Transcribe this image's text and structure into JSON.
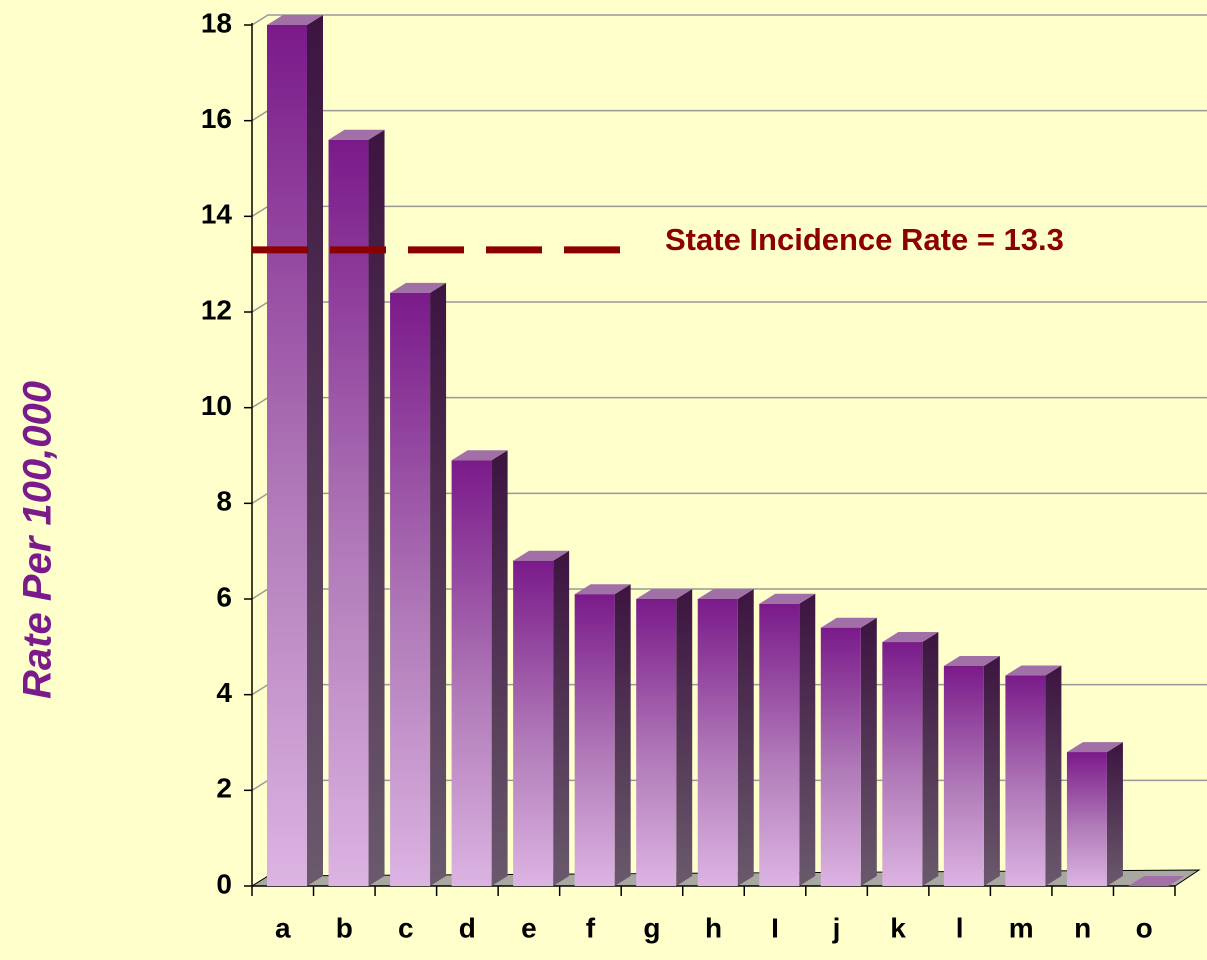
{
  "chart_data": {
    "type": "bar3d",
    "y_label": "Rate  Per  100,000",
    "categories": [
      "a",
      "b",
      "c",
      "d",
      "e",
      "f",
      "g",
      "h",
      "I",
      "j",
      "k",
      "l",
      "m",
      "n",
      "o"
    ],
    "values": [
      18.0,
      15.6,
      12.4,
      8.9,
      6.8,
      6.1,
      6.0,
      6.0,
      5.9,
      5.4,
      5.1,
      4.6,
      4.4,
      2.8,
      0
    ],
    "color": "#7a1a8a",
    "ylim": [
      0,
      18
    ],
    "yticks": [
      0,
      2,
      4,
      6,
      8,
      10,
      12,
      14,
      16,
      18
    ],
    "grid": true,
    "reference_line": {
      "value": 13.3,
      "label": "State Incidence Rate = 13.3",
      "color": "#8b0000"
    }
  }
}
